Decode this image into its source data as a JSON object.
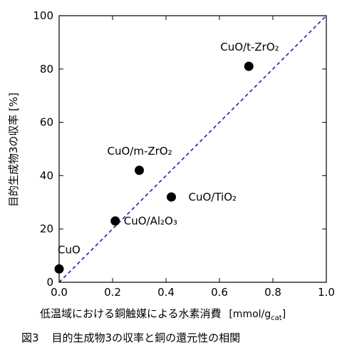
{
  "chart_data": {
    "type": "scatter",
    "xlabel": "低温域における銅触媒による水素消費",
    "xlabel_unit_prefix": "[mmol/g",
    "xlabel_unit_sub": "cat",
    "xlabel_unit_suffix": "]",
    "ylabel": "目的生成物3の収率 [%]",
    "xlim": [
      0.0,
      1.0
    ],
    "ylim": [
      0,
      100
    ],
    "xticks": [
      "0.0",
      "0.2",
      "0.4",
      "0.6",
      "0.8",
      "1.0"
    ],
    "yticks": [
      "0",
      "20",
      "40",
      "60",
      "80",
      "100"
    ],
    "points": [
      {
        "x": 0.0,
        "y": 5,
        "label": "CuO"
      },
      {
        "x": 0.21,
        "y": 23,
        "label": "CuO/Al₂O₃"
      },
      {
        "x": 0.3,
        "y": 42,
        "label": "CuO/m-ZrO₂"
      },
      {
        "x": 0.42,
        "y": 32,
        "label": "CuO/TiO₂"
      },
      {
        "x": 0.71,
        "y": 81,
        "label": "CuO/t-ZrO₂"
      }
    ],
    "reference_line": {
      "from": [
        0,
        0
      ],
      "to": [
        1.0,
        100
      ],
      "style": "dashed",
      "color": "#1f1fa8"
    },
    "grid": false,
    "marker_color": "#000000"
  },
  "caption": {
    "number": "図3",
    "text": "目的生成物3の収率と銅の還元性の相関"
  }
}
